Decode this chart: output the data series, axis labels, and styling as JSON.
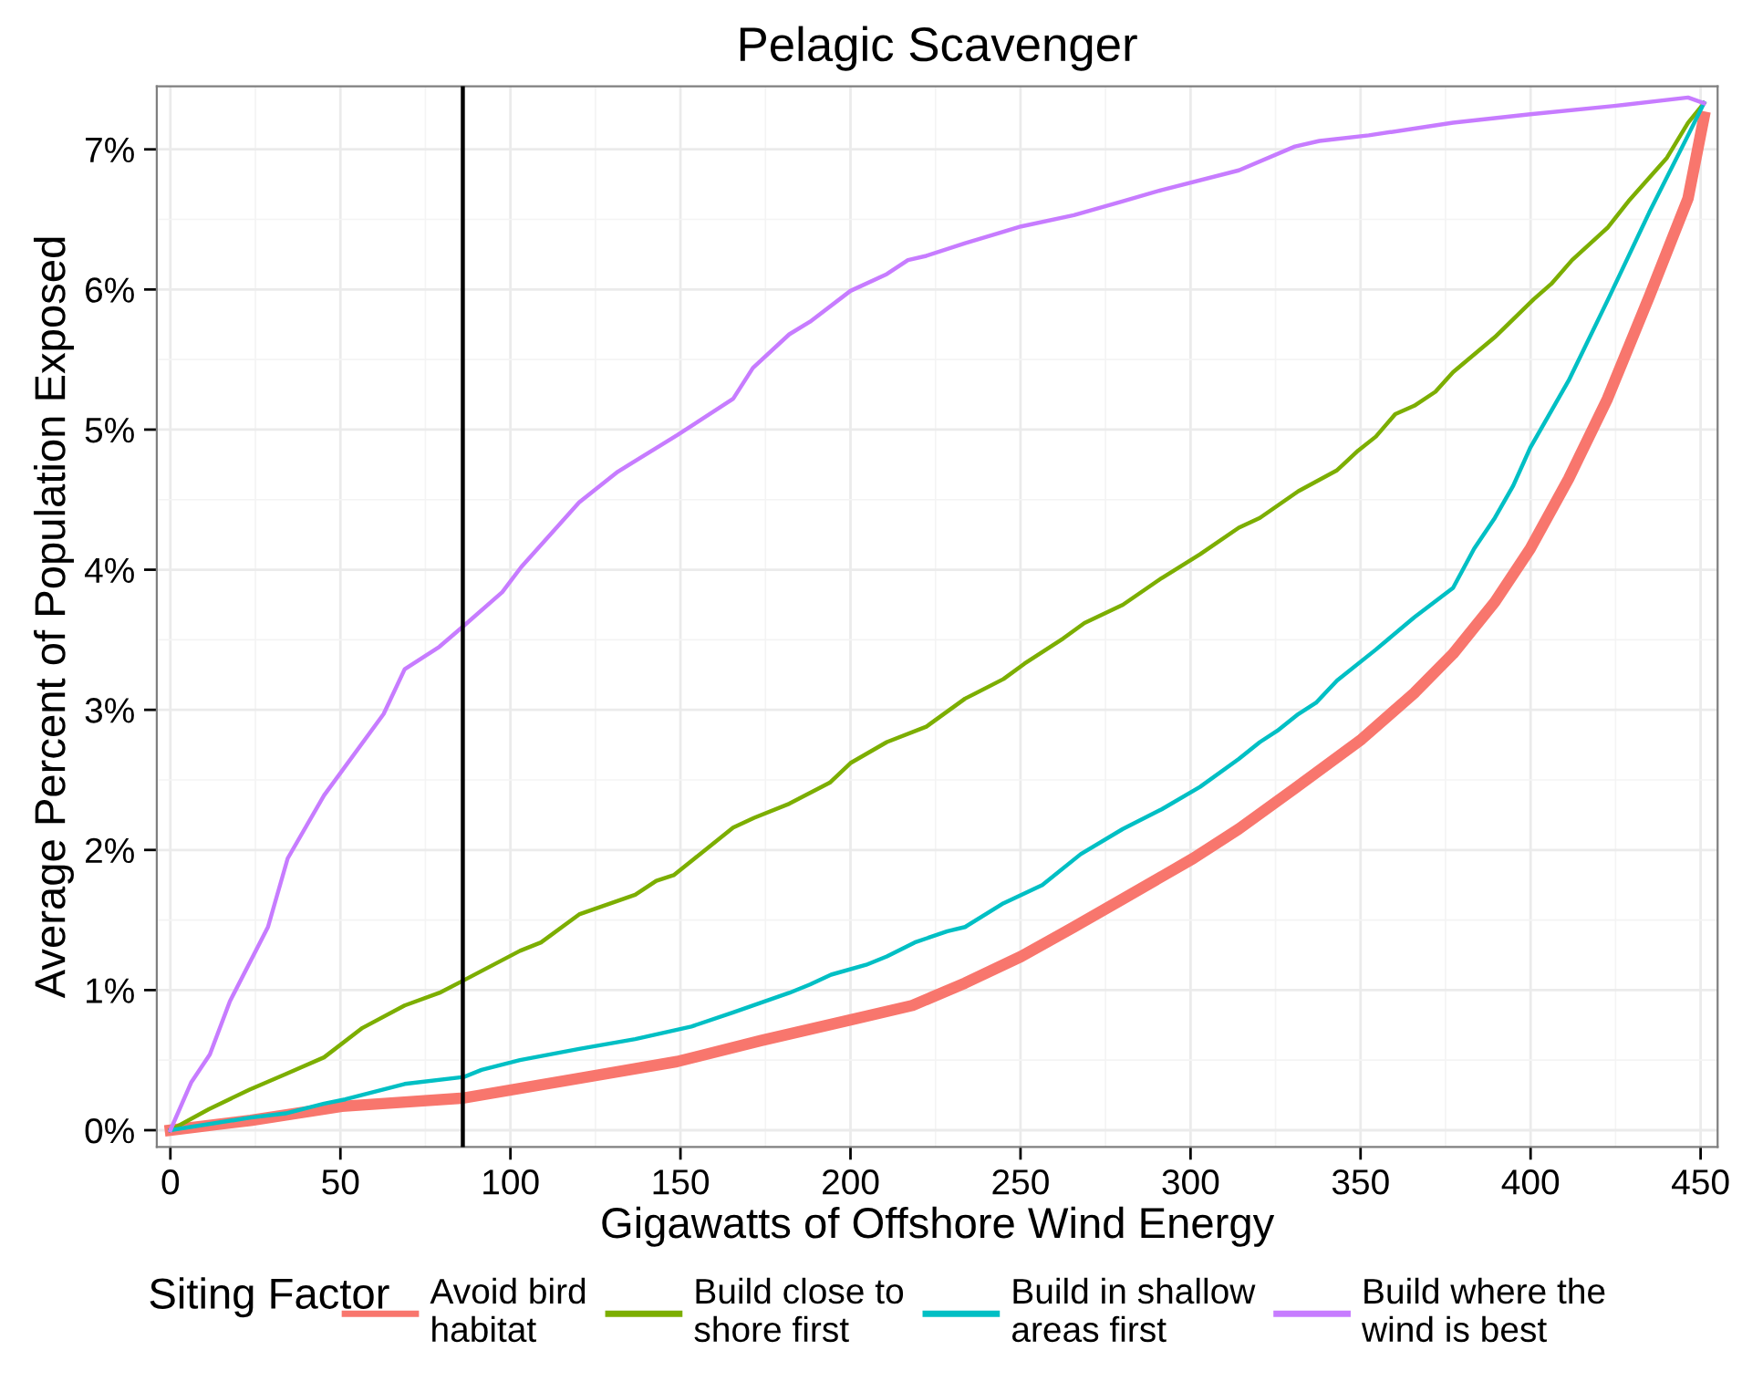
{
  "chart_data": {
    "type": "line",
    "title": "Pelagic Scavenger",
    "xlabel": "Gigawatts of Offshore Wind Energy",
    "ylabel": "Average Percent of Population Exposed",
    "legend_title": "Siting Factor",
    "legend": "bottom",
    "grid": true,
    "xlim": [
      -4,
      455
    ],
    "xticks": [
      0,
      50,
      100,
      150,
      200,
      250,
      300,
      350,
      400,
      450
    ],
    "ylim": [
      -0.12,
      7.45
    ],
    "yticks": [
      {
        "value": 0,
        "label": "0%"
      },
      {
        "value": 1,
        "label": "1%"
      },
      {
        "value": 2,
        "label": "2%"
      },
      {
        "value": 3,
        "label": "3%"
      },
      {
        "value": 4,
        "label": "4%"
      },
      {
        "value": 5,
        "label": "5%"
      },
      {
        "value": 6,
        "label": "6%"
      },
      {
        "value": 7,
        "label": "7%"
      }
    ],
    "ref_lines": [
      {
        "axis": "x",
        "value": 86,
        "color": "#000000"
      }
    ],
    "series": [
      {
        "name": "Avoid bird\nhabitat",
        "color": "#f8766d",
        "x": [
          0,
          23.6,
          50.4,
          86.3,
          120.2,
          149,
          173.8,
          200.5,
          218.2,
          233.7,
          250.2,
          265.7,
          280.1,
          300.8,
          314.2,
          330.7,
          350.3,
          365.8,
          377.2,
          389.5,
          399.9,
          411.2,
          422.6,
          434.9,
          446.3,
          451
        ],
        "values": [
          0,
          0.07,
          0.17,
          0.23,
          0.37,
          0.49,
          0.64,
          0.79,
          0.89,
          1.05,
          1.24,
          1.45,
          1.65,
          1.94,
          2.15,
          2.44,
          2.79,
          3.12,
          3.4,
          3.77,
          4.15,
          4.65,
          5.22,
          5.95,
          6.65,
          7.23
        ]
      },
      {
        "name": "Build close to\nshore first",
        "color": "#7cae00",
        "x": [
          0,
          11.3,
          23.3,
          33.9,
          45.2,
          56.5,
          68.9,
          79.1,
          86.3,
          102.8,
          109,
          120.2,
          136.7,
          142.9,
          148,
          154.2,
          165.5,
          171.7,
          182,
          193.9,
          200,
          210.7,
          222.3,
          233.7,
          245,
          251.2,
          262.6,
          268.8,
          280.1,
          291.5,
          302.8,
          314.2,
          320.4,
          331.7,
          343.1,
          349.3,
          354.5,
          360.2,
          365.8,
          372,
          377.2,
          389.5,
          400.9,
          406.1,
          412.2,
          422.6,
          428.8,
          440.1,
          446.3,
          451
        ],
        "values": [
          0,
          0.15,
          0.29,
          0.4,
          0.52,
          0.73,
          0.89,
          0.98,
          1.07,
          1.28,
          1.34,
          1.54,
          1.68,
          1.78,
          1.82,
          1.94,
          2.16,
          2.23,
          2.33,
          2.48,
          2.62,
          2.77,
          2.88,
          3.08,
          3.22,
          3.33,
          3.51,
          3.62,
          3.75,
          3.94,
          4.11,
          4.3,
          4.37,
          4.56,
          4.71,
          4.85,
          4.95,
          5.11,
          5.17,
          5.27,
          5.41,
          5.66,
          5.93,
          6.04,
          6.21,
          6.44,
          6.63,
          6.94,
          7.19,
          7.33
        ]
      },
      {
        "name": "Build in shallow\nareas first",
        "color": "#00bfc4",
        "x": [
          0,
          23.6,
          33.9,
          45.2,
          51.4,
          68.9,
          86.3,
          91.5,
          102.8,
          120.2,
          136.7,
          153.2,
          165.5,
          182,
          188.1,
          194.3,
          204.6,
          210.7,
          218.9,
          228.5,
          233.7,
          245,
          256.4,
          267.7,
          280.1,
          291.5,
          302.8,
          314.2,
          320.4,
          325.5,
          331.7,
          336.9,
          343.1,
          354.5,
          365.8,
          377.2,
          383.4,
          389.5,
          394.9,
          399.9,
          411.2,
          422.6,
          434.9,
          446.3,
          451
        ],
        "values": [
          0,
          0.09,
          0.12,
          0.19,
          0.22,
          0.33,
          0.38,
          0.43,
          0.5,
          0.58,
          0.65,
          0.74,
          0.84,
          0.98,
          1.04,
          1.11,
          1.18,
          1.24,
          1.34,
          1.42,
          1.45,
          1.62,
          1.75,
          1.97,
          2.15,
          2.29,
          2.45,
          2.65,
          2.77,
          2.85,
          2.97,
          3.05,
          3.21,
          3.43,
          3.66,
          3.87,
          4.15,
          4.37,
          4.6,
          4.87,
          5.35,
          5.92,
          6.55,
          7.1,
          7.33
        ]
      },
      {
        "name": "Build where the\nwind is best",
        "color": "#c77cff",
        "x": [
          0,
          6.1,
          11.6,
          17.5,
          28.7,
          34.5,
          45.2,
          62.7,
          68.9,
          79.1,
          86.3,
          97.6,
          103.2,
          120.2,
          131.6,
          149,
          165.5,
          171.3,
          182,
          188.1,
          200,
          210.7,
          216.9,
          222.3,
          233.7,
          250.2,
          265.7,
          280.1,
          291.5,
          314.2,
          330.7,
          337.9,
          352.4,
          377.2,
          399.9,
          424.6,
          446.3,
          451
        ],
        "values": [
          0,
          0.34,
          0.54,
          0.92,
          1.45,
          1.94,
          2.39,
          2.97,
          3.29,
          3.45,
          3.6,
          3.84,
          4.02,
          4.48,
          4.7,
          4.96,
          5.22,
          5.44,
          5.68,
          5.77,
          5.99,
          6.11,
          6.21,
          6.24,
          6.33,
          6.45,
          6.53,
          6.63,
          6.71,
          6.85,
          7.02,
          7.06,
          7.1,
          7.19,
          7.25,
          7.31,
          7.37,
          7.33
        ]
      }
    ]
  }
}
